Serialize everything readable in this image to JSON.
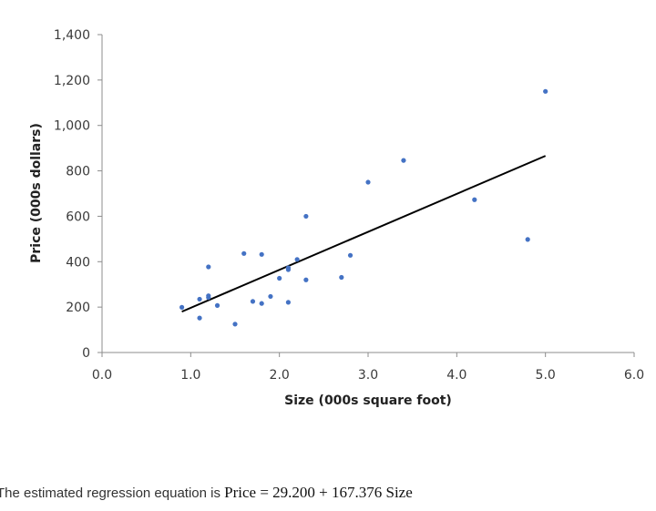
{
  "chart_data": {
    "type": "scatter",
    "title": "",
    "xlabel": "Size (000s square foot)",
    "ylabel": "Price (000s dollars)",
    "xlim": [
      0,
      6
    ],
    "ylim": [
      0,
      1400
    ],
    "x_ticks": [
      "0.0",
      "1.0",
      "2.0",
      "3.0",
      "4.0",
      "5.0",
      "6.0"
    ],
    "x_tick_values": [
      0,
      1,
      2,
      3,
      4,
      5,
      6
    ],
    "y_ticks": [
      "0",
      "200",
      "400",
      "600",
      "800",
      "1,000",
      "1,200",
      "1,400"
    ],
    "y_tick_values": [
      0,
      200,
      400,
      600,
      800,
      1000,
      1200,
      1400
    ],
    "grid": false,
    "points": [
      {
        "x": 0.9,
        "y": 199
      },
      {
        "x": 1.1,
        "y": 235
      },
      {
        "x": 1.1,
        "y": 152
      },
      {
        "x": 1.2,
        "y": 250
      },
      {
        "x": 1.2,
        "y": 242
      },
      {
        "x": 1.2,
        "y": 377
      },
      {
        "x": 1.3,
        "y": 207
      },
      {
        "x": 1.5,
        "y": 125
      },
      {
        "x": 1.6,
        "y": 436
      },
      {
        "x": 1.7,
        "y": 225
      },
      {
        "x": 1.8,
        "y": 432
      },
      {
        "x": 1.8,
        "y": 216
      },
      {
        "x": 1.9,
        "y": 247
      },
      {
        "x": 2.0,
        "y": 327
      },
      {
        "x": 2.1,
        "y": 221
      },
      {
        "x": 2.1,
        "y": 365
      },
      {
        "x": 2.1,
        "y": 373
      },
      {
        "x": 2.2,
        "y": 410
      },
      {
        "x": 2.3,
        "y": 600
      },
      {
        "x": 2.3,
        "y": 320
      },
      {
        "x": 2.7,
        "y": 331
      },
      {
        "x": 2.8,
        "y": 428
      },
      {
        "x": 3.0,
        "y": 750
      },
      {
        "x": 3.4,
        "y": 846
      },
      {
        "x": 4.2,
        "y": 673
      },
      {
        "x": 4.8,
        "y": 498
      },
      {
        "x": 5.0,
        "y": 1150
      }
    ],
    "point_color": "#4472c4",
    "trendline": {
      "x": [
        0.9,
        5.0
      ],
      "y": [
        180,
        866
      ],
      "color": "#000000"
    }
  },
  "caption": {
    "text": "The estimated regression equation is ",
    "equation": "Price = 29.200 + 167.376 Size"
  }
}
